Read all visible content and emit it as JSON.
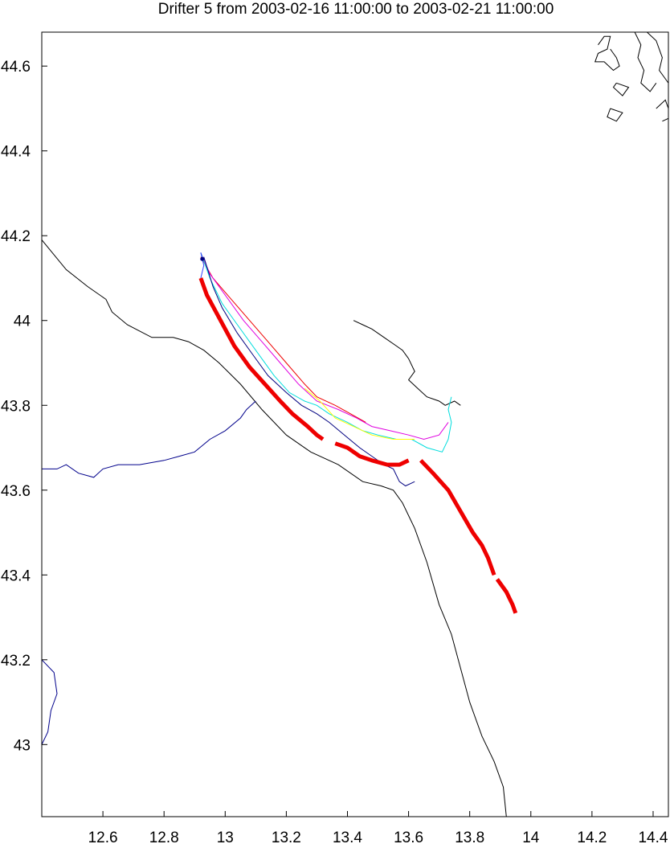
{
  "chart_data": {
    "type": "map",
    "title": "Drifter 5 from 2003-02-16 11:00:00 to 2003-02-21 11:00:00",
    "xlim": [
      12.4,
      14.45
    ],
    "ylim": [
      42.83,
      44.68
    ],
    "x_ticks": [
      {
        "v": 12.6,
        "label": "12.6"
      },
      {
        "v": 12.8,
        "label": "12.8"
      },
      {
        "v": 13.0,
        "label": "13"
      },
      {
        "v": 13.2,
        "label": "13.2"
      },
      {
        "v": 13.4,
        "label": "13.4"
      },
      {
        "v": 13.6,
        "label": "13.6"
      },
      {
        "v": 13.8,
        "label": "13.8"
      },
      {
        "v": 14.0,
        "label": "14"
      },
      {
        "v": 14.2,
        "label": "14.2"
      },
      {
        "v": 14.4,
        "label": "14.4"
      }
    ],
    "y_ticks": [
      {
        "v": 43.0,
        "label": "43"
      },
      {
        "v": 43.2,
        "label": "43.2"
      },
      {
        "v": 43.4,
        "label": "43.4"
      },
      {
        "v": 43.6,
        "label": "43.6"
      },
      {
        "v": 43.8,
        "label": "43.8"
      },
      {
        "v": 44.0,
        "label": "44"
      },
      {
        "v": 44.2,
        "label": "44.2"
      },
      {
        "v": 44.4,
        "label": "44.4"
      },
      {
        "v": 44.6,
        "label": "44.6"
      }
    ],
    "colors": {
      "coast": "#000000",
      "river": "#00008b",
      "observed": "#ee0000",
      "model_red": "#ee0000",
      "model_magenta": "#e000e0",
      "model_cyan": "#00dddd",
      "model_yellow": "#ffff00",
      "model_navy": "#000080",
      "model_blue": "#3344ff"
    },
    "coastline": [
      [
        [
          12.4,
          44.19
        ],
        [
          12.48,
          44.12
        ],
        [
          12.55,
          44.08
        ],
        [
          12.61,
          44.05
        ],
        [
          12.63,
          44.02
        ],
        [
          12.68,
          43.99
        ],
        [
          12.76,
          43.96
        ],
        [
          12.83,
          43.96
        ],
        [
          12.88,
          43.95
        ],
        [
          12.93,
          43.93
        ],
        [
          12.98,
          43.9
        ],
        [
          13.05,
          43.85
        ],
        [
          13.12,
          43.79
        ],
        [
          13.2,
          43.73
        ],
        [
          13.28,
          43.69
        ],
        [
          13.37,
          43.66
        ],
        [
          13.45,
          43.62
        ],
        [
          13.51,
          43.61
        ],
        [
          13.55,
          43.6
        ],
        [
          13.58,
          43.57
        ],
        [
          13.62,
          43.51
        ],
        [
          13.66,
          43.43
        ],
        [
          13.7,
          43.33
        ],
        [
          13.74,
          43.26
        ],
        [
          13.77,
          43.18
        ],
        [
          13.8,
          43.1
        ],
        [
          13.84,
          43.02
        ],
        [
          13.88,
          42.96
        ],
        [
          13.91,
          42.9
        ],
        [
          13.92,
          42.83
        ]
      ],
      [
        [
          13.42,
          44.0
        ],
        [
          13.45,
          43.99
        ],
        [
          13.48,
          43.98
        ],
        [
          13.52,
          43.96
        ],
        [
          13.56,
          43.94
        ],
        [
          13.58,
          43.93
        ],
        [
          13.6,
          43.91
        ],
        [
          13.62,
          43.88
        ],
        [
          13.6,
          43.86
        ],
        [
          13.63,
          43.84
        ],
        [
          13.66,
          43.82
        ],
        [
          13.7,
          43.81
        ],
        [
          13.72,
          43.8
        ],
        [
          13.75,
          43.81
        ],
        [
          13.77,
          43.8
        ]
      ]
    ],
    "islands": [
      [
        [
          14.22,
          44.65
        ],
        [
          14.24,
          44.67
        ],
        [
          14.26,
          44.67
        ],
        [
          14.25,
          44.64
        ],
        [
          14.22,
          44.63
        ],
        [
          14.21,
          44.61
        ],
        [
          14.24,
          44.61
        ],
        [
          14.27,
          44.59
        ],
        [
          14.29,
          44.6
        ],
        [
          14.28,
          44.62
        ],
        [
          14.26,
          44.64
        ]
      ],
      [
        [
          14.38,
          44.68
        ],
        [
          14.41,
          44.66
        ],
        [
          14.43,
          44.62
        ],
        [
          14.42,
          44.59
        ],
        [
          14.44,
          44.57
        ],
        [
          14.46,
          44.55
        ]
      ],
      [
        [
          14.34,
          44.68
        ],
        [
          14.36,
          44.65
        ],
        [
          14.35,
          44.62
        ],
        [
          14.37,
          44.59
        ],
        [
          14.36,
          44.56
        ],
        [
          14.39,
          44.54
        ],
        [
          14.41,
          44.56
        ]
      ],
      [
        [
          14.28,
          44.56
        ],
        [
          14.32,
          44.55
        ],
        [
          14.3,
          44.53
        ],
        [
          14.27,
          44.55
        ],
        [
          14.28,
          44.56
        ]
      ],
      [
        [
          14.26,
          44.5
        ],
        [
          14.3,
          44.49
        ],
        [
          14.28,
          44.47
        ],
        [
          14.25,
          44.48
        ],
        [
          14.26,
          44.5
        ]
      ],
      [
        [
          14.41,
          44.5
        ],
        [
          14.44,
          44.52
        ],
        [
          14.46,
          44.48
        ],
        [
          14.43,
          44.47
        ]
      ]
    ],
    "rivers": [
      [
        [
          12.4,
          43.65
        ],
        [
          12.45,
          43.65
        ],
        [
          12.48,
          43.66
        ],
        [
          12.52,
          43.64
        ],
        [
          12.57,
          43.63
        ],
        [
          12.6,
          43.65
        ],
        [
          12.65,
          43.66
        ],
        [
          12.68,
          43.66
        ],
        [
          12.72,
          43.66
        ],
        [
          12.8,
          43.67
        ],
        [
          12.85,
          43.68
        ],
        [
          12.9,
          43.69
        ],
        [
          12.95,
          43.72
        ],
        [
          13.0,
          43.74
        ],
        [
          13.05,
          43.77
        ],
        [
          13.07,
          43.79
        ],
        [
          13.1,
          43.81
        ]
      ],
      [
        [
          12.4,
          43.2
        ],
        [
          12.44,
          43.17
        ],
        [
          12.45,
          43.12
        ],
        [
          12.43,
          43.08
        ],
        [
          12.42,
          43.03
        ],
        [
          12.4,
          43.0
        ]
      ]
    ],
    "observed_track": [
      [
        [
          12.92,
          44.1
        ],
        [
          12.94,
          44.06
        ],
        [
          12.97,
          44.02
        ],
        [
          13.0,
          43.98
        ],
        [
          13.03,
          43.94
        ],
        [
          13.08,
          43.89
        ],
        [
          13.13,
          43.85
        ],
        [
          13.18,
          43.81
        ],
        [
          13.22,
          43.78
        ],
        [
          13.27,
          43.75
        ],
        [
          13.3,
          43.73
        ],
        [
          13.32,
          43.72
        ]
      ],
      [
        [
          13.36,
          43.71
        ],
        [
          13.4,
          43.7
        ],
        [
          13.44,
          43.68
        ],
        [
          13.48,
          43.67
        ],
        [
          13.53,
          43.66
        ],
        [
          13.57,
          43.66
        ],
        [
          13.6,
          43.67
        ]
      ],
      [
        [
          13.64,
          43.67
        ],
        [
          13.68,
          43.64
        ],
        [
          13.73,
          43.6
        ],
        [
          13.77,
          43.55
        ],
        [
          13.81,
          43.5
        ],
        [
          13.84,
          43.47
        ],
        [
          13.86,
          43.44
        ],
        [
          13.88,
          43.4
        ]
      ],
      [
        [
          13.89,
          43.39
        ],
        [
          13.92,
          43.36
        ],
        [
          13.94,
          43.33
        ],
        [
          13.95,
          43.31
        ]
      ]
    ],
    "model_tracks": [
      {
        "color": "model_red",
        "points": [
          [
            12.92,
            44.15
          ],
          [
            12.96,
            44.1
          ],
          [
            13.02,
            44.05
          ],
          [
            13.08,
            44.0
          ],
          [
            13.14,
            43.95
          ],
          [
            13.2,
            43.9
          ],
          [
            13.26,
            43.85
          ],
          [
            13.3,
            43.82
          ],
          [
            13.36,
            43.8
          ],
          [
            13.41,
            43.78
          ],
          [
            13.46,
            43.76
          ]
        ]
      },
      {
        "color": "model_magenta",
        "points": [
          [
            12.92,
            44.16
          ],
          [
            12.95,
            44.11
          ],
          [
            13.0,
            44.06
          ],
          [
            13.06,
            44.0
          ],
          [
            13.12,
            43.95
          ],
          [
            13.18,
            43.9
          ],
          [
            13.24,
            43.85
          ],
          [
            13.3,
            43.81
          ],
          [
            13.37,
            43.79
          ],
          [
            13.43,
            43.77
          ],
          [
            13.48,
            43.75
          ],
          [
            13.54,
            43.74
          ],
          [
            13.6,
            43.73
          ],
          [
            13.65,
            43.72
          ],
          [
            13.7,
            43.73
          ],
          [
            13.73,
            43.76
          ]
        ]
      },
      {
        "color": "model_cyan",
        "points": [
          [
            12.92,
            44.16
          ],
          [
            12.95,
            44.1
          ],
          [
            12.99,
            44.04
          ],
          [
            13.04,
            43.99
          ],
          [
            13.1,
            43.93
          ],
          [
            13.16,
            43.87
          ],
          [
            13.21,
            43.83
          ],
          [
            13.26,
            43.81
          ],
          [
            13.3,
            43.8
          ],
          [
            13.34,
            43.78
          ],
          [
            13.4,
            43.76
          ],
          [
            13.45,
            43.74
          ],
          [
            13.5,
            43.73
          ],
          [
            13.56,
            43.72
          ],
          [
            13.61,
            43.72
          ],
          [
            13.66,
            43.7
          ],
          [
            13.71,
            43.69
          ],
          [
            13.73,
            43.72
          ],
          [
            13.74,
            43.76
          ],
          [
            13.73,
            43.79
          ],
          [
            13.74,
            43.82
          ]
        ]
      },
      {
        "color": "model_yellow",
        "points": [
          [
            13.26,
            43.84
          ],
          [
            13.31,
            43.81
          ],
          [
            13.36,
            43.77
          ],
          [
            13.42,
            43.75
          ],
          [
            13.48,
            43.73
          ],
          [
            13.55,
            43.72
          ],
          [
            13.62,
            43.72
          ]
        ]
      },
      {
        "color": "model_navy",
        "points": [
          [
            12.93,
            44.15
          ],
          [
            12.96,
            44.08
          ],
          [
            12.99,
            44.03
          ],
          [
            13.04,
            43.97
          ],
          [
            13.09,
            43.92
          ],
          [
            13.14,
            43.87
          ],
          [
            13.2,
            43.83
          ],
          [
            13.25,
            43.8
          ],
          [
            13.3,
            43.78
          ],
          [
            13.34,
            43.76
          ],
          [
            13.39,
            43.73
          ],
          [
            13.44,
            43.7
          ],
          [
            13.48,
            43.68
          ],
          [
            13.52,
            43.66
          ],
          [
            13.55,
            43.65
          ],
          [
            13.57,
            43.62
          ],
          [
            13.59,
            43.61
          ],
          [
            13.62,
            43.62
          ]
        ]
      },
      {
        "color": "model_blue",
        "points": [
          [
            12.92,
            44.16
          ],
          [
            12.93,
            44.13
          ],
          [
            12.92,
            44.1
          ]
        ]
      }
    ],
    "start_marker": {
      "x": 12.925,
      "y": 44.145
    }
  }
}
